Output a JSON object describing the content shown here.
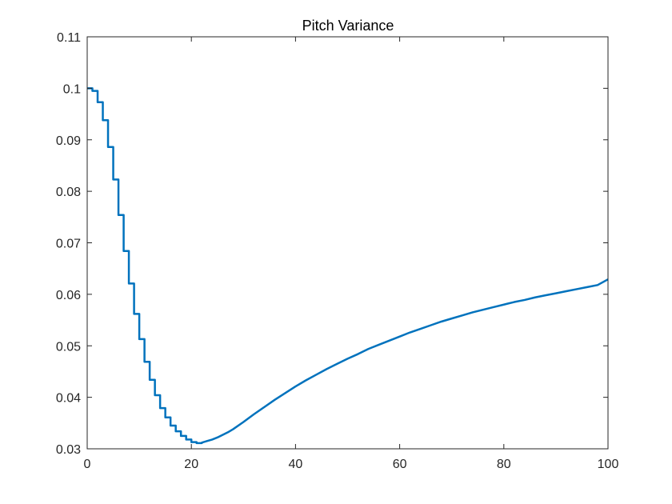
{
  "chart_data": {
    "type": "line",
    "title": "Pitch Variance",
    "xlabel": "",
    "ylabel": "",
    "xlim": [
      0,
      100
    ],
    "ylim": [
      0.03,
      0.11
    ],
    "x_ticks": [
      0,
      20,
      40,
      60,
      80,
      100
    ],
    "y_ticks": [
      0.03,
      0.04,
      0.05,
      0.06,
      0.07,
      0.08,
      0.09,
      0.1,
      0.11
    ],
    "x_tick_labels": [
      "0",
      "20",
      "40",
      "60",
      "80",
      "100"
    ],
    "y_tick_labels": [
      "0.03",
      "0.04",
      "0.05",
      "0.06",
      "0.07",
      "0.08",
      "0.09",
      "0.1",
      "0.11"
    ],
    "grid": false,
    "legend": "none",
    "line_color": "#0072BD",
    "series": [
      {
        "x": [
          0,
          1,
          2,
          3,
          4,
          5,
          6,
          7,
          8,
          9,
          10,
          11,
          12,
          13,
          14,
          15,
          16,
          17,
          18,
          19,
          20,
          21,
          22,
          23,
          24,
          25,
          26,
          27,
          28,
          30,
          32,
          34,
          36,
          38,
          40,
          42,
          44,
          46,
          48,
          50,
          52,
          54,
          56,
          58,
          60,
          62,
          64,
          66,
          68,
          70,
          72,
          74,
          76,
          78,
          80,
          82,
          84,
          86,
          88,
          90,
          92,
          94,
          96,
          98,
          100
        ],
        "values": [
          0.1,
          0.0995,
          0.0973,
          0.0938,
          0.0886,
          0.0823,
          0.0754,
          0.0684,
          0.0621,
          0.0562,
          0.0513,
          0.0469,
          0.0434,
          0.0404,
          0.0379,
          0.0361,
          0.0345,
          0.0334,
          0.0325,
          0.0318,
          0.0313,
          0.0311,
          0.0312,
          0.0315,
          0.0318,
          0.0322,
          0.0327,
          0.0332,
          0.0338,
          0.0352,
          0.0367,
          0.0381,
          0.0395,
          0.0408,
          0.0421,
          0.0433,
          0.0444,
          0.0455,
          0.0465,
          0.0475,
          0.0484,
          0.0494,
          0.0502,
          0.051,
          0.0518,
          0.0526,
          0.0533,
          0.054,
          0.0547,
          0.0553,
          0.0559,
          0.0565,
          0.057,
          0.0575,
          0.058,
          0.0585,
          0.0589,
          0.0594,
          0.0598,
          0.0602,
          0.0606,
          0.061,
          0.0614,
          0.0618,
          0.0629
        ]
      }
    ]
  }
}
